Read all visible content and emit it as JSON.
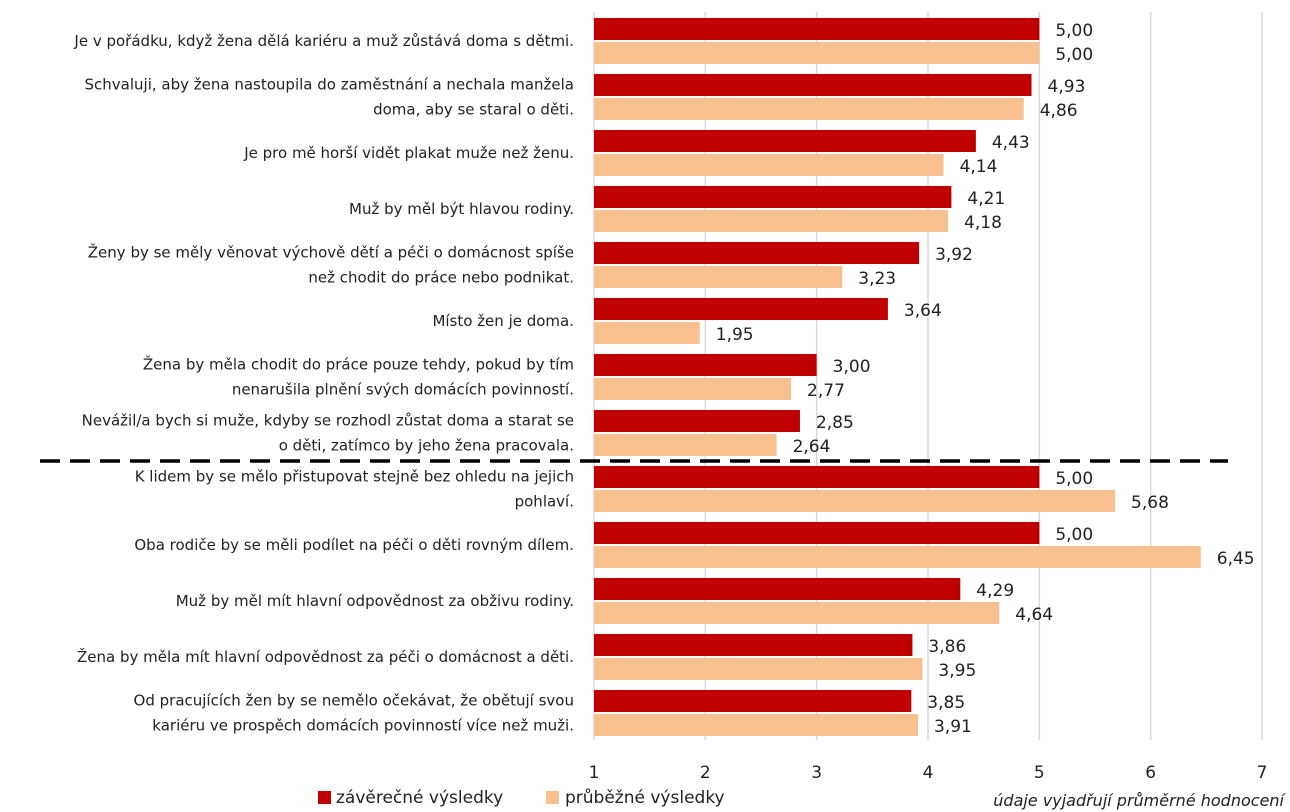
{
  "colors": {
    "final": "#c00000",
    "interim": "#f8c08e",
    "grid": "#d9d9d9",
    "divider": "#000000"
  },
  "legend": {
    "final_label": "závěrečné výsledky",
    "interim_label": "průběžné výsledky"
  },
  "note": "údaje vyjadřují průměrné hodnocení",
  "chart_data": {
    "type": "bar",
    "orientation": "horizontal",
    "xlim": [
      1,
      7
    ],
    "xticks": [
      "1",
      "2",
      "3",
      "4",
      "5",
      "6",
      "7"
    ],
    "grid": true,
    "legend_position": "bottom",
    "categories": [
      [
        "Je v pořádku, když žena dělá kariéru a muž zůstává doma s dětmi."
      ],
      [
        "Schvaluji, aby žena nastoupila do zaměstnání a nechala manžela",
        "doma, aby se staral o děti."
      ],
      [
        "Je pro mě horší vidět plakat muže než ženu."
      ],
      [
        "Muž by měl být hlavou rodiny."
      ],
      [
        "Ženy by se měly věnovat výchově dětí a péči o domácnost spíše",
        "než chodit do práce nebo podnikat."
      ],
      [
        "Místo žen je doma."
      ],
      [
        "Žena by měla chodit do práce pouze tehdy, pokud by tím",
        "nenarušila plnění svých domácích povinností."
      ],
      [
        "Nevážil/a bych si muže, kdyby se rozhodl zůstat doma  a starat se",
        "o děti, zatímco by jeho žena pracovala."
      ],
      [
        "K lidem by se mělo přistupovat stejně bez ohledu na jejich",
        "pohlaví."
      ],
      [
        "Oba rodiče by se měli podílet na péči o děti rovným dílem."
      ],
      [
        "Muž by měl mít hlavní odpovědnost za obživu rodiny."
      ],
      [
        "Žena by měla mít hlavní odpovědnost za péči o domácnost a děti."
      ],
      [
        "Od pracujících žen by se nemělo očekávat, že obětují svou",
        "kariéru ve prospěch domácích povinností více než muži."
      ]
    ],
    "series": [
      {
        "name": "závěrečné výsledky",
        "values": [
          5.0,
          4.93,
          4.43,
          4.21,
          3.92,
          3.64,
          3.0,
          2.85,
          5.0,
          5.0,
          4.29,
          3.86,
          3.85
        ],
        "labels": [
          "5,00",
          "4,93",
          "4,43",
          "4,21",
          "3,92",
          "3,64",
          "3,00",
          "2,85",
          "5,00",
          "5,00",
          "4,29",
          "3,86",
          "3,85"
        ]
      },
      {
        "name": "průběžné výsledky",
        "values": [
          5.0,
          4.86,
          4.14,
          4.18,
          3.23,
          1.95,
          2.77,
          2.64,
          5.68,
          6.45,
          4.64,
          3.95,
          3.91
        ],
        "labels": [
          "5,00",
          "4,86",
          "4,14",
          "4,18",
          "3,23",
          "1,95",
          "2,77",
          "2,64",
          "5,68",
          "6,45",
          "4,64",
          "3,95",
          "3,91"
        ]
      }
    ],
    "divider_after_index": 7
  }
}
